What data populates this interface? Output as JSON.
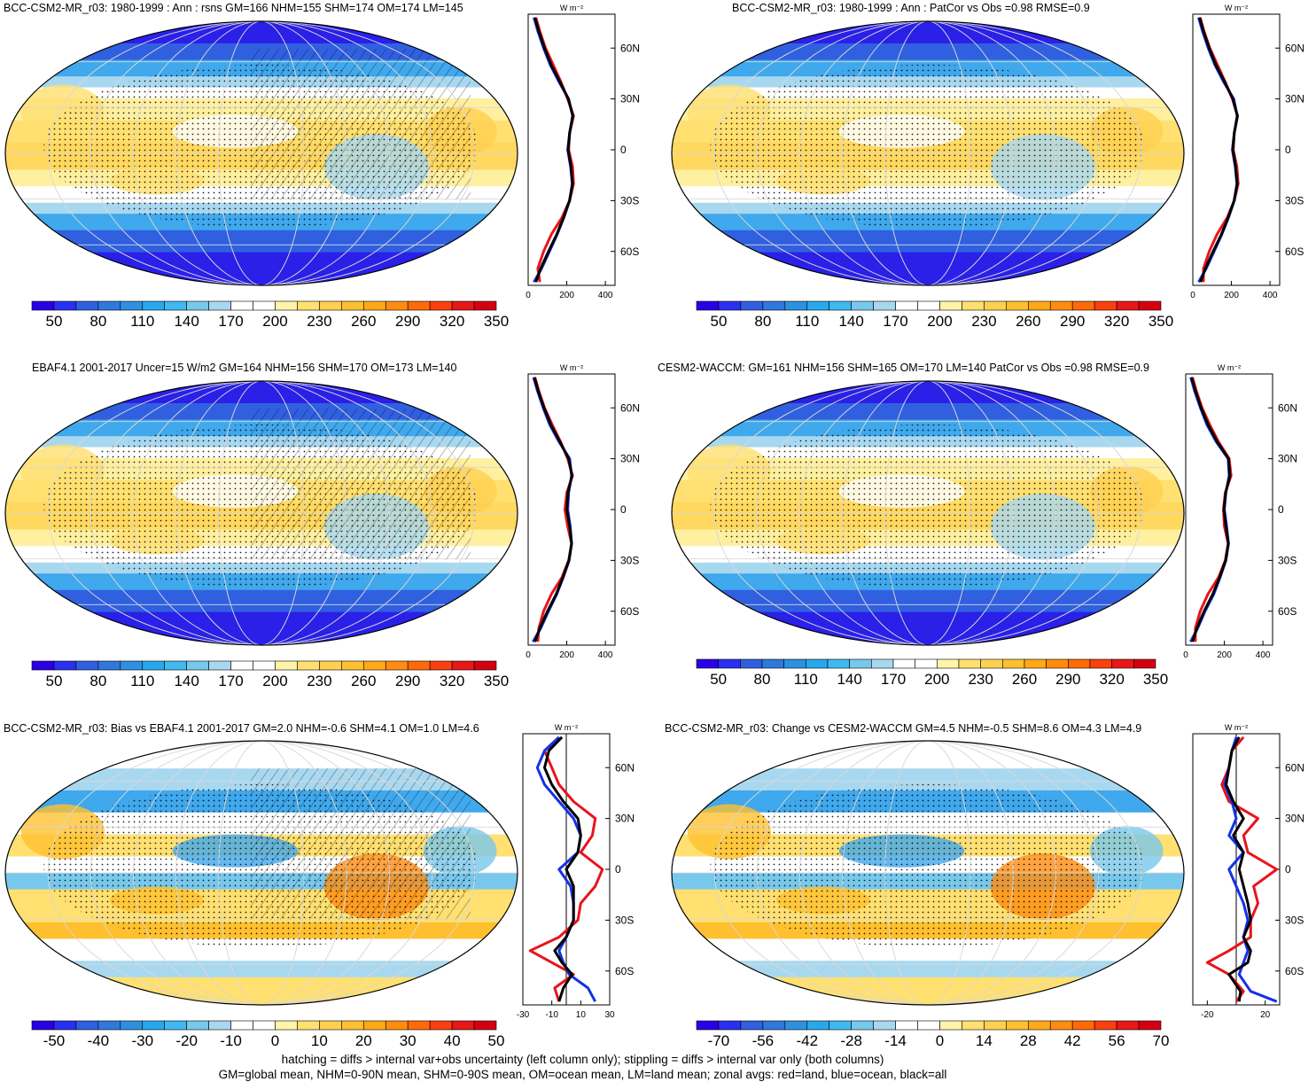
{
  "units_label": "W m⁻²",
  "lat_labels": [
    "60N",
    "30N",
    "0",
    "30S",
    "60S"
  ],
  "footer": {
    "line1": "hatching = diffs > internal var+obs uncertainty (left column only); stippling = diffs > internal var only (both columns)",
    "line2": "GM=global mean, NHM=0-90N mean, SHM=0-90S mean, OM=ocean mean, LM=land mean; zonal avgs: red=land, blue=ocean, black=all"
  },
  "colors": {
    "land": "#e8141c",
    "ocean": "#1432e6",
    "all": "#000000"
  },
  "colorbar_abs": [
    "#2a00e6",
    "#2a30f0",
    "#3060e0",
    "#2f78dc",
    "#2e90e0",
    "#28a8ec",
    "#40b8f0",
    "#78c8ec",
    "#a8d8f0",
    "#ffffff",
    "#ffffff",
    "#fff4a8",
    "#ffe070",
    "#ffd050",
    "#ffc030",
    "#ffa818",
    "#ff8c10",
    "#ff6a08",
    "#f84010",
    "#e81818",
    "#d40010"
  ],
  "colorbar_diff": [
    "#2a00e6",
    "#2a30f0",
    "#3060e0",
    "#2f78dc",
    "#2e90e0",
    "#28a8ec",
    "#40b8f0",
    "#78c8ec",
    "#a8d8f0",
    "#ffffff",
    "#ffffff",
    "#fff4a8",
    "#ffe070",
    "#ffd050",
    "#ffc030",
    "#ffa818",
    "#ff8c10",
    "#ff6a08",
    "#f84010",
    "#e81818",
    "#d40010"
  ],
  "panels": [
    {
      "title": "BCC-CSM2-MR_r03: 1980-1999 : Ann : rsns GM=166 NHM=155 SHM=174 OM=174 LM=145",
      "cb_labels": [
        "50",
        "80",
        "110",
        "140",
        "170",
        "200",
        "230",
        "260",
        "290",
        "320",
        "350"
      ],
      "hatch": true,
      "chart_data": {
        "type": "line",
        "xlabel": "W m⁻²",
        "x_ticks": [
          "0",
          "200",
          "400"
        ],
        "xlim": [
          0,
          450
        ],
        "ylim": [
          -80,
          80
        ],
        "y_ticks": [
          "60N",
          "30N",
          "0",
          "30S",
          "60S"
        ],
        "lat": [
          -78,
          -70,
          -60,
          -50,
          -40,
          -30,
          -20,
          -10,
          0,
          10,
          20,
          30,
          40,
          50,
          60,
          70,
          78
        ],
        "series": [
          {
            "name": "land",
            "values": [
              60,
              50,
              80,
              120,
              175,
              215,
              235,
              230,
              210,
              215,
              235,
              205,
              170,
              130,
              90,
              60,
              40
            ]
          },
          {
            "name": "ocean",
            "values": [
              30,
              70,
              110,
              150,
              185,
              215,
              228,
              220,
              205,
              215,
              230,
              210,
              160,
              115,
              80,
              50,
              30
            ]
          },
          {
            "name": "all",
            "values": [
              40,
              65,
              105,
              148,
              183,
              214,
              230,
              222,
              207,
              215,
              232,
              208,
              165,
              120,
              85,
              55,
              35
            ]
          }
        ]
      }
    },
    {
      "title": "BCC-CSM2-MR_r03: 1980-1999 : Ann : PatCor vs Obs =0.98 RMSE=0.9",
      "cb_labels": [
        "50",
        "80",
        "110",
        "140",
        "170",
        "200",
        "230",
        "260",
        "290",
        "320",
        "350"
      ],
      "hatch": false,
      "chart_data": {
        "type": "line",
        "xlabel": "W m⁻²",
        "x_ticks": [
          "0",
          "200",
          "400"
        ],
        "xlim": [
          0,
          450
        ],
        "ylim": [
          -80,
          80
        ],
        "y_ticks": [
          "60N",
          "30N",
          "0",
          "30S",
          "60S"
        ],
        "lat": [
          -78,
          -70,
          -60,
          -50,
          -40,
          -30,
          -20,
          -10,
          0,
          10,
          20,
          30,
          40,
          50,
          60,
          70,
          78
        ],
        "series": [
          {
            "name": "land",
            "values": [
              55,
              55,
              85,
              125,
              178,
              215,
              235,
              228,
              210,
              215,
              232,
              205,
              168,
              128,
              88,
              58,
              38
            ]
          },
          {
            "name": "ocean",
            "values": [
              30,
              70,
              110,
              150,
              185,
              215,
              228,
              220,
              205,
              215,
              230,
              212,
              160,
              115,
              80,
              50,
              30
            ]
          },
          {
            "name": "all",
            "values": [
              40,
              65,
              105,
              148,
              183,
              214,
              230,
              222,
              207,
              215,
              231,
              208,
              165,
              120,
              85,
              55,
              35
            ]
          }
        ]
      }
    },
    {
      "title": "EBAF4.1 2001-2017 Uncer=15 W/m2 GM=164 NHM=156 SHM=170 OM=173 LM=140",
      "cb_labels": [
        "50",
        "80",
        "110",
        "140",
        "170",
        "200",
        "230",
        "260",
        "290",
        "320",
        "350"
      ],
      "hatch": true,
      "chart_data": {
        "type": "line",
        "xlabel": "W m⁻²",
        "x_ticks": [
          "0",
          "200",
          "400"
        ],
        "xlim": [
          0,
          450
        ],
        "ylim": [
          -80,
          80
        ],
        "y_ticks": [
          "60N",
          "30N",
          "0",
          "30S",
          "60S"
        ],
        "lat": [
          -78,
          -70,
          -60,
          -50,
          -40,
          -30,
          -20,
          -10,
          0,
          10,
          20,
          30,
          40,
          50,
          60,
          70,
          78
        ],
        "series": [
          {
            "name": "land",
            "values": [
              50,
              55,
              80,
              120,
              175,
              210,
              225,
              205,
              190,
              200,
              230,
              205,
              168,
              125,
              85,
              55,
              35
            ]
          },
          {
            "name": "ocean",
            "values": [
              25,
              65,
              105,
              148,
              182,
              212,
              225,
              218,
              205,
              210,
              225,
              215,
              160,
              112,
              78,
              48,
              28
            ]
          },
          {
            "name": "all",
            "values": [
              35,
              60,
              100,
              145,
              180,
              211,
              225,
              215,
              200,
              206,
              227,
              210,
              164,
              118,
              82,
              52,
              32
            ]
          }
        ]
      }
    },
    {
      "title": "CESM2-WACCM: GM=161 NHM=156 SHM=165 OM=170 LM=140 PatCor vs Obs =0.98 RMSE=0.9",
      "cb_labels": [
        "50",
        "80",
        "110",
        "140",
        "170",
        "200",
        "230",
        "260",
        "290",
        "320",
        "350"
      ],
      "hatch": false,
      "chart_data": {
        "type": "line",
        "xlabel": "W m⁻²",
        "x_ticks": [
          "0",
          "200",
          "400"
        ],
        "xlim": [
          0,
          450
        ],
        "ylim": [
          -80,
          80
        ],
        "y_ticks": [
          "60N",
          "30N",
          "0",
          "30S",
          "60S"
        ],
        "lat": [
          -78,
          -70,
          -60,
          -50,
          -40,
          -30,
          -20,
          -10,
          0,
          10,
          20,
          30,
          40,
          50,
          60,
          70,
          78
        ],
        "series": [
          {
            "name": "land",
            "values": [
              50,
              50,
              75,
              115,
              170,
              205,
              220,
              200,
              195,
              205,
              235,
              225,
              170,
              125,
              85,
              55,
              35
            ]
          },
          {
            "name": "ocean",
            "values": [
              25,
              62,
              100,
              145,
              178,
              208,
              222,
              212,
              200,
              208,
              225,
              220,
              158,
              110,
              76,
              46,
              26
            ]
          },
          {
            "name": "all",
            "values": [
              35,
              58,
              95,
              140,
              176,
              207,
              221,
              208,
              198,
              207,
              229,
              222,
              163,
              116,
              80,
              50,
              30
            ]
          }
        ]
      }
    },
    {
      "title": "BCC-CSM2-MR_r03: Bias vs EBAF4.1 2001-2017 GM=2.0 NHM=-0.6 SHM=4.1 OM=1.0 LM=4.6",
      "cb_labels": [
        "-50",
        "-40",
        "-30",
        "-20",
        "-10",
        "0",
        "10",
        "20",
        "30",
        "40",
        "50"
      ],
      "hatch": true,
      "chart_data": {
        "type": "line",
        "xlabel": "W m⁻²",
        "x_ticks": [
          "-30",
          "-10",
          "10",
          "30"
        ],
        "xlim": [
          -30,
          30
        ],
        "ylim": [
          -80,
          80
        ],
        "y_ticks": [
          "60N",
          "30N",
          "0",
          "30S",
          "60S"
        ],
        "lat": [
          -78,
          -70,
          -62,
          -55,
          -48,
          -40,
          -30,
          -20,
          -10,
          0,
          10,
          20,
          30,
          40,
          50,
          60,
          70,
          78
        ],
        "series": [
          {
            "name": "land",
            "values": [
              -5,
              -8,
              5,
              -10,
              -25,
              -5,
              8,
              10,
              20,
              25,
              10,
              18,
              20,
              5,
              -5,
              -10,
              -15,
              -5
            ]
          },
          {
            "name": "ocean",
            "values": [
              20,
              15,
              2,
              -2,
              -5,
              0,
              5,
              5,
              3,
              -5,
              8,
              10,
              5,
              -5,
              -15,
              -20,
              -15,
              -5
            ]
          },
          {
            "name": "all",
            "values": [
              -5,
              -2,
              4,
              -3,
              -8,
              0,
              5,
              5,
              5,
              0,
              8,
              10,
              8,
              -2,
              -10,
              -15,
              -12,
              -3
            ]
          }
        ]
      }
    },
    {
      "title": "BCC-CSM2-MR_r03: Change vs CESM2-WACCM GM=4.5 NHM=-0.5 SHM=8.6 OM=4.3 LM=4.9",
      "cb_labels": [
        "-70",
        "-56",
        "-42",
        "-28",
        "-14",
        "0",
        "14",
        "28",
        "42",
        "56",
        "70"
      ],
      "hatch": false,
      "chart_data": {
        "type": "line",
        "xlabel": "W m⁻²",
        "x_ticks": [
          "-20",
          "20"
        ],
        "xlim": [
          -30,
          30
        ],
        "ylim": [
          -80,
          80
        ],
        "y_ticks": [
          "60N",
          "30N",
          "0",
          "30S",
          "60S"
        ],
        "lat": [
          -78,
          -72,
          -62,
          -55,
          -48,
          -40,
          -30,
          -20,
          -10,
          0,
          10,
          20,
          30,
          40,
          50,
          60,
          70,
          78
        ],
        "series": [
          {
            "name": "land",
            "values": [
              0,
              5,
              -5,
              -20,
              -5,
              10,
              10,
              15,
              12,
              28,
              8,
              5,
              15,
              -5,
              -10,
              -5,
              -3,
              5
            ]
          },
          {
            "name": "ocean",
            "values": [
              28,
              10,
              2,
              5,
              8,
              5,
              8,
              5,
              0,
              -5,
              5,
              -5,
              0,
              -3,
              -8,
              -5,
              -3,
              0
            ]
          },
          {
            "name": "all",
            "values": [
              2,
              3,
              -5,
              8,
              10,
              5,
              10,
              8,
              5,
              2,
              5,
              -2,
              5,
              -2,
              -7,
              -5,
              -3,
              2
            ]
          }
        ]
      }
    }
  ]
}
